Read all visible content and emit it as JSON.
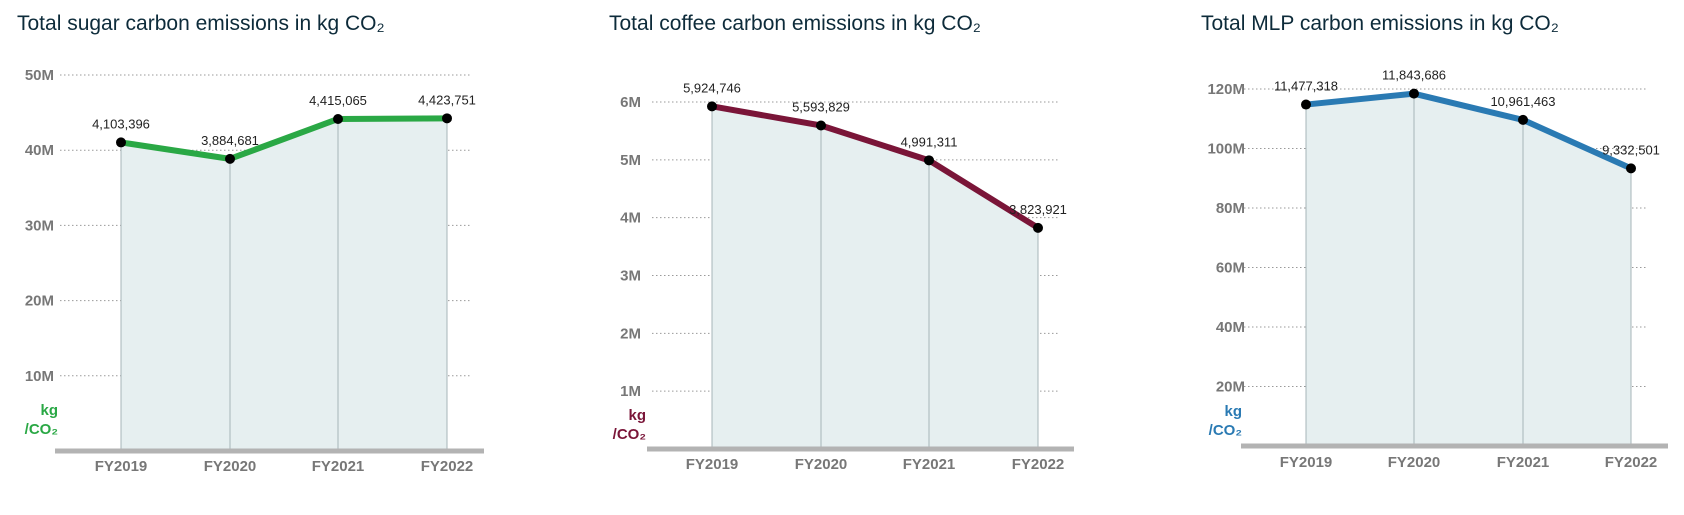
{
  "chart_data": [
    {
      "type": "area",
      "title": "Total sugar carbon emissions in kg CO₂",
      "categories": [
        "FY2019",
        "FY2020",
        "FY2021",
        "FY2022"
      ],
      "values": [
        4103396,
        3884681,
        4415065,
        4423751
      ],
      "value_labels": [
        "4,103,396",
        "3,884,681",
        "4,415,065",
        "4,423,751"
      ],
      "yticks": [
        10000000,
        20000000,
        30000000,
        40000000,
        50000000
      ],
      "ytick_labels": [
        "10M",
        "20M",
        "30M",
        "40M",
        "50M"
      ],
      "ylim": [
        0,
        50000000
      ],
      "plot_scale_note": "points plotted as value×10 against tick axis, as shown",
      "plot_multiplier": 10,
      "unit_line1": "kg",
      "unit_line2": "/CO₂",
      "color": "#2aa845"
    },
    {
      "type": "area",
      "title": "Total coffee carbon emissions in kg CO₂",
      "categories": [
        "FY2019",
        "FY2020",
        "FY2021",
        "FY2022"
      ],
      "values": [
        5924746,
        5593829,
        4991311,
        3823921
      ],
      "value_labels": [
        "5,924,746",
        "5,593,829",
        "4,991,311",
        "3,823,921"
      ],
      "yticks": [
        1000000,
        2000000,
        3000000,
        4000000,
        5000000,
        6000000
      ],
      "ytick_labels": [
        "1M",
        "2M",
        "3M",
        "4M",
        "5M",
        "6M"
      ],
      "ylim": [
        0,
        6000000
      ],
      "plot_multiplier": 1,
      "unit_line1": "kg",
      "unit_line2": "/CO₂",
      "color": "#7a1538"
    },
    {
      "type": "area",
      "title": "Total MLP carbon emissions in kg CO₂",
      "categories": [
        "FY2019",
        "FY2020",
        "FY2021",
        "FY2022"
      ],
      "values": [
        11477318,
        11843686,
        10961463,
        9332501
      ],
      "value_labels": [
        "11,477,318",
        "11,843,686",
        "10,961,463",
        "9,332,501"
      ],
      "yticks": [
        20000000,
        40000000,
        60000000,
        80000000,
        100000000,
        120000000
      ],
      "ytick_labels": [
        "20M",
        "40M",
        "60M",
        "80M",
        "100M",
        "120M"
      ],
      "ylim": [
        0,
        120000000
      ],
      "plot_multiplier": 10,
      "unit_line1": "kg",
      "unit_line2": "/CO₂",
      "color": "#2a7ab3"
    }
  ]
}
